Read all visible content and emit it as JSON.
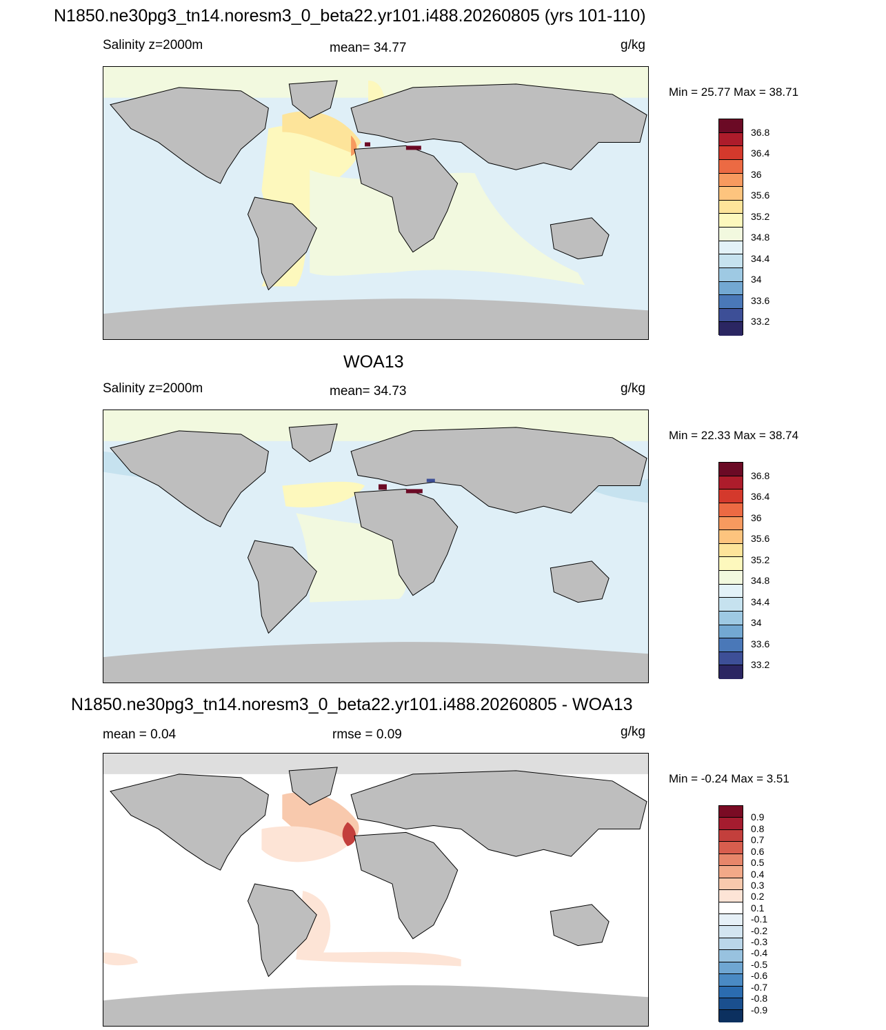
{
  "figure": {
    "title": "N1850.ne30pg3_tn14.noresm3_0_beta22.yr101.i488.20260805 (yrs 101-110)"
  },
  "panels": [
    {
      "id": "model",
      "header": "",
      "left_label": "Salinity z=2000m",
      "center_label": "mean=  34.77",
      "units": "g/kg",
      "minmax": "Min =  25.77 Max =  38.71",
      "colorbar": {
        "colors": [
          "#2b2662",
          "#3d4f97",
          "#4a78b8",
          "#73a8d2",
          "#9ec9e3",
          "#c6e2ef",
          "#e3f2f8",
          "#f2f9df",
          "#fdf8bd",
          "#fde49a",
          "#fdc47e",
          "#f79a5f",
          "#ec6a43",
          "#d4392c",
          "#ad1c2b",
          "#6b0a25"
        ],
        "labels": [
          "36.8",
          "36.4",
          "36",
          "35.6",
          "35.2",
          "34.8",
          "34.4",
          "34",
          "33.6",
          "33.2"
        ]
      }
    },
    {
      "id": "obs",
      "header": "WOA13",
      "left_label": "Salinity z=2000m",
      "center_label": "mean=  34.73",
      "units": "g/kg",
      "minmax": "Min =  22.33 Max =  38.74",
      "colorbar": {
        "colors": [
          "#2b2662",
          "#3d4f97",
          "#4a78b8",
          "#73a8d2",
          "#9ec9e3",
          "#c6e2ef",
          "#e3f2f8",
          "#f2f9df",
          "#fdf8bd",
          "#fde49a",
          "#fdc47e",
          "#f79a5f",
          "#ec6a43",
          "#d4392c",
          "#ad1c2b",
          "#6b0a25"
        ],
        "labels": [
          "36.8",
          "36.4",
          "36",
          "35.6",
          "35.2",
          "34.8",
          "34.4",
          "34",
          "33.6",
          "33.2"
        ]
      }
    },
    {
      "id": "diff",
      "header": "N1850.ne30pg3_tn14.noresm3_0_beta22.yr101.i488.20260805 - WOA13",
      "left_label": "mean =   0.04",
      "center_label": "rmse =   0.09",
      "units": "g/kg",
      "minmax": "Min =  -0.24 Max =   3.51",
      "colorbar": {
        "colors": [
          "#0c305f",
          "#1a4f8e",
          "#2b6cb0",
          "#4a8ac4",
          "#6fa6d2",
          "#98c2df",
          "#bad6e9",
          "#d3e5f1",
          "#e6f0f7",
          "#ffffff",
          "#fde4d6",
          "#f8c9ad",
          "#f2a988",
          "#e7866a",
          "#d85e4e",
          "#c33f3c",
          "#a51c2f",
          "#7a0b24"
        ],
        "labels": [
          "0.9",
          "0.8",
          "0.7",
          "0.6",
          "0.5",
          "0.4",
          "0.3",
          "0.2",
          "0.1",
          "-0.1",
          "-0.2",
          "-0.3",
          "-0.4",
          "-0.5",
          "-0.6",
          "-0.7",
          "-0.8",
          "-0.9"
        ]
      }
    }
  ]
}
